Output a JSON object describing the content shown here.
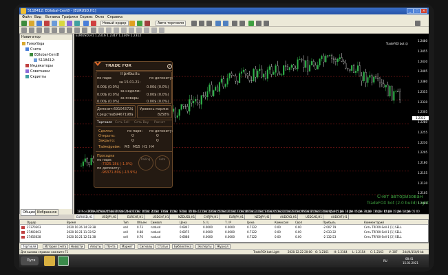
{
  "window": {
    "title": "5118412: EGlobal-Cent8 - [EURUSD,H1]"
  },
  "menu": [
    "Файл",
    "Вид",
    "Вставка",
    "Графики",
    "Сервис",
    "Окно",
    "Справка"
  ],
  "toolbar": {
    "new_order": "Новый ордер",
    "autotrade": "Авто-торговля"
  },
  "navigator": {
    "title": "Навигатор",
    "items": [
      "ForexYoga",
      "Счета",
      "EGlobal-Cent8",
      "5118412:",
      "Индикаторы",
      "Советники",
      "Скрипты"
    ],
    "tabs": [
      "Общие",
      "Избранное"
    ]
  },
  "chart": {
    "title": "EURUSD,H1 1.2316 1.2317 1.2309 1.2312",
    "ea_label": "TradeFOX bot ☺",
    "price_tag": "1.2312",
    "watermark_line1": "Счет авторизован",
    "watermark_line2": "TradeFOX bot (2.0 build) Light",
    "y_labels": [
      "1.2480",
      "1.2455",
      "1.2430",
      "1.2405",
      "1.2380",
      "1.2355",
      "1.2330",
      "1.2305",
      "1.2280",
      "1.2255",
      "1.2230",
      "1.2205",
      "1.2180",
      "1.2155",
      "1.2130",
      "1.2105",
      "1.2080"
    ],
    "x_labels": [
      "18 Nov 2020",
      "19 Nov 05:00",
      "24 Nov 05:00",
      "25 Nov 21:00",
      "30 Nov 21:00",
      "1 Dec 13:00",
      "2 Dec 05:00",
      "3 Dec 21:00",
      "4 Dec 13:00",
      "7 Dec 21:00",
      "8 Dec 13:00",
      "9 Dec 05:00",
      "10 Dec 21:00",
      "11 Dec 13:00",
      "14 Dec 05:00",
      "15 Dec 21:00",
      "16 Dec 13:00",
      "17 Dec 05:00",
      "18 Dec 21:00",
      "21 Dec 13:00",
      "22 Dec 05:00",
      "23 Dec 21:00",
      "24 Dec 13:00",
      "28 Dec 05:00",
      "29 Dec 21:00",
      "30 Dec 13:00",
      "31 Dec 05:00",
      "4 Jan 21:00",
      "5 Jan 13:00",
      "6 Jan 05:00",
      "7 Jan 21:00",
      "8 Jan 13:00",
      "11 Jan 05:00",
      "12 Jan 21:00",
      "13 Jan 13:00",
      "14 Jan 05:00"
    ],
    "h_levels": [
      0.22,
      0.36,
      0.5,
      0.64,
      0.78,
      0.92
    ]
  },
  "panel": {
    "brand": "TRADE FOX",
    "help": "?",
    "profit_title": "Прибыль",
    "by_pair": "по паре:",
    "by_deposit": "по депозиту:",
    "rows": [
      {
        "period": "за 15.01.21:",
        "pair": "0.00$ (0.0%)",
        "dep": "0.00$ (0.0%)"
      },
      {
        "period": "за неделю:",
        "pair": "0.00$ (0.0%)",
        "dep": "0.00$ (0.0%)"
      },
      {
        "period": "за январь:",
        "pair": "0.00$ (0.0%)",
        "dep": "0.00$ (0.0%)"
      }
    ],
    "balance_label": "Депозит:",
    "balance": "69104372$",
    "equity_label": "Средства:",
    "equity": "59467198$",
    "margin_label": "Уровень маржи:",
    "margin": "8258%",
    "tabs": [
      "Торговля",
      "Сеть Sell",
      "Сеть Buy",
      "Расчет"
    ],
    "deals_label": "Сделки:",
    "pair_col": "по паре:",
    "dep_col": "по депозиту:",
    "opened_label": "Открыто:",
    "opened_pair": "0",
    "opened_dep": "0",
    "closed_label": "Закрыто:",
    "closed_pair": "0",
    "closed_dep": "0",
    "tf_label": "Таймфрейм:",
    "timeframes": [
      "M5",
      "M15",
      "H1",
      "H4"
    ],
    "dd_title": "Просадка",
    "dd_pair_label": "по паре:",
    "dd_pair": "-7325.18$ (-1.0%)",
    "dd_dep_label": "по депозиту:",
    "dd_dep": "-96371.80$ (-13.9%)",
    "btn_trailing": "Trailing",
    "btn_auto": "Auto"
  },
  "symbol_tabs": [
    "EURUSD,H1",
    "USDJPY,H1",
    "EURCHF,H1",
    "USDCHF,H1",
    "NZDUSD,H1",
    "CHFJPY,H1",
    "EURJPY,H1",
    "NZDJPY,H1",
    "AUDCAD,H1",
    "USDCAD,H1",
    "AUDCHF,H1"
  ],
  "orders": {
    "headers": [
      "Ордер",
      "Время",
      "Тип",
      "Объем",
      "Символ",
      "Цена",
      "S / L",
      "T / P",
      "Цена",
      "Комиссия",
      "Своп",
      "Прибыль",
      "Комментарий"
    ],
    "rows": [
      [
        "27370303",
        "2020.10.26 14:33:38",
        "sell",
        "0.73",
        "nzdusd",
        "0.6847",
        "0.0000",
        "0.0000",
        "0.7122",
        "0.00",
        "0.00",
        "-2 007.79",
        "Сеть TRFOX-Sell-1 [1] SELL"
      ],
      [
        "27403003",
        "2020.10.21 11:33:52",
        "sell",
        "0.88",
        "nzdusd",
        "0.6875",
        "0.0000",
        "0.0000",
        "0.7122",
        "0.00",
        "0.00",
        "-2 033.32",
        "Сеть TRFOX-Sell-1 [1] SELL"
      ],
      [
        "27456628",
        "2020.10.21 12:11:38",
        "sell",
        "0.76",
        "nzdusd",
        "0.6888",
        "0.0000",
        "0.0000",
        "0.7122",
        "0.00",
        "0.00",
        "-2 132.53",
        "Сеть TRFOX-Sell-1 [2] SELL"
      ]
    ]
  },
  "terminal_tabs": [
    "Торговля",
    "История Счета",
    "Новости",
    "Алерты",
    "Почта",
    "Маркет",
    "Сигналы",
    "Статьи",
    "Библиотека",
    "Эксперты",
    "Журнал"
  ],
  "status": {
    "help": "Для вызова справки нажмите F1",
    "profile": "TradeFOX bot Light",
    "datetime": "2020.12.22 20:00",
    "open": "O: 1.2161",
    "high": "H: 1.2164",
    "low": "L: 1.2154",
    "close": "C: 1.2163",
    "volume": "V: 307",
    "traffic": "244/4/150/0 kb"
  },
  "taskbar": {
    "start": "Пуск",
    "lang": "RU",
    "time": "08:41",
    "date": "15.01.2021"
  },
  "colors": {
    "bull": "#2fb44a",
    "bear": "#e8e8e8",
    "grid": "#1e1e1e",
    "level": "#8b1a1a"
  }
}
